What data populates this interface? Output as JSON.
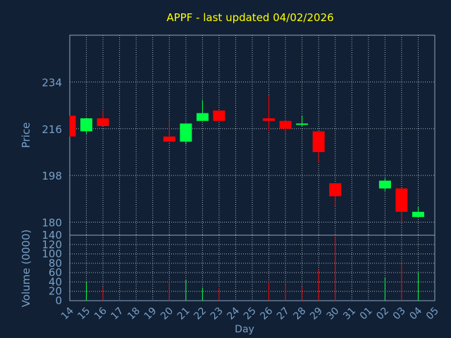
{
  "chart_data": {
    "type": "candlestick",
    "title": "APPF - last updated 04/02/2026",
    "xlabel": "Day",
    "x_ticks": [
      "14",
      "15",
      "16",
      "17",
      "18",
      "19",
      "20",
      "21",
      "22",
      "23",
      "24",
      "25",
      "26",
      "27",
      "28",
      "29",
      "30",
      "31",
      "01",
      "02",
      "03",
      "04",
      "05"
    ],
    "price_panel": {
      "ylabel": "Price",
      "y_ticks": [
        180,
        198,
        216,
        234
      ],
      "ylim": [
        175,
        252
      ],
      "grid": true,
      "candles": [
        {
          "day": "14",
          "open": 221,
          "high": 221,
          "low": 213,
          "close": 213
        },
        {
          "day": "15",
          "open": 215,
          "high": 220,
          "low": 214,
          "close": 220
        },
        {
          "day": "16",
          "open": 220,
          "high": 223,
          "low": 217,
          "close": 217
        },
        {
          "day": "20",
          "open": 213,
          "high": 219,
          "low": 211,
          "close": 211
        },
        {
          "day": "21",
          "open": 211,
          "high": 218,
          "low": 210,
          "close": 218
        },
        {
          "day": "22",
          "open": 219,
          "high": 227,
          "low": 219,
          "close": 222
        },
        {
          "day": "23",
          "open": 223,
          "high": 223,
          "low": 219,
          "close": 219
        },
        {
          "day": "26",
          "open": 220,
          "high": 229,
          "low": 215,
          "close": 219
        },
        {
          "day": "27",
          "open": 219,
          "high": 219,
          "low": 214,
          "close": 216
        },
        {
          "day": "28",
          "open": 218,
          "high": 221,
          "low": 217,
          "close": 218
        },
        {
          "day": "29",
          "open": 215,
          "high": 215,
          "low": 203,
          "close": 207
        },
        {
          "day": "30",
          "open": 195,
          "high": 195,
          "low": 186,
          "close": 190
        },
        {
          "day": "02",
          "open": 193,
          "high": 197,
          "low": 192,
          "close": 196
        },
        {
          "day": "03",
          "open": 193,
          "high": 193,
          "low": 180,
          "close": 184
        },
        {
          "day": "04",
          "open": 182,
          "high": 186,
          "low": 182,
          "close": 184
        }
      ]
    },
    "volume_panel": {
      "ylabel": "Volume (0000)",
      "y_ticks": [
        0,
        20,
        40,
        60,
        80,
        100,
        120,
        140
      ],
      "ylim": [
        0,
        140
      ],
      "bars": [
        {
          "day": "15",
          "value": 40,
          "color": "green"
        },
        {
          "day": "16",
          "value": 30,
          "color": "red"
        },
        {
          "day": "20",
          "value": 40,
          "color": "red"
        },
        {
          "day": "21",
          "value": 45,
          "color": "green"
        },
        {
          "day": "22",
          "value": 28,
          "color": "green"
        },
        {
          "day": "23",
          "value": 27,
          "color": "red"
        },
        {
          "day": "26",
          "value": 40,
          "color": "red"
        },
        {
          "day": "27",
          "value": 35,
          "color": "red"
        },
        {
          "day": "28",
          "value": 30,
          "color": "red"
        },
        {
          "day": "29",
          "value": 67,
          "color": "red"
        },
        {
          "day": "30",
          "value": 140,
          "color": "red"
        },
        {
          "day": "02",
          "value": 50,
          "color": "green"
        },
        {
          "day": "03",
          "value": 80,
          "color": "red"
        },
        {
          "day": "04",
          "value": 60,
          "color": "green"
        }
      ]
    },
    "colors": {
      "background": "#112034",
      "up": "#00ff44",
      "down": "#ff0000",
      "title": "#ffff00",
      "axis_text": "#7aa0c8",
      "frame": "#8fa6c0",
      "grid": "#b8c4d0"
    }
  }
}
